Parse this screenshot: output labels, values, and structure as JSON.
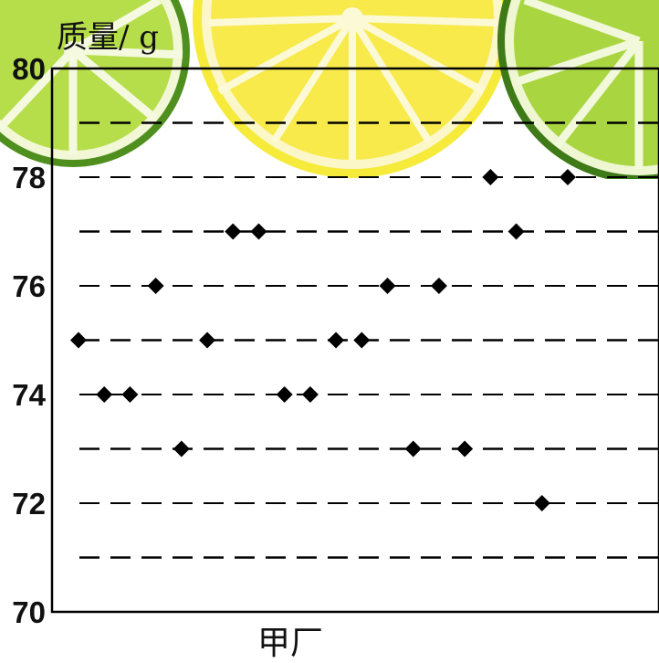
{
  "chart_data": {
    "type": "scatter",
    "ylabel": "质量/ g",
    "xlabel": "甲厂",
    "ylim": [
      70,
      80
    ],
    "yticks": [
      70,
      72,
      74,
      76,
      78,
      80
    ],
    "gridlines": [
      71,
      72,
      73,
      74,
      75,
      76,
      77,
      78,
      79
    ],
    "grid": true,
    "x": [
      1,
      2,
      3,
      4,
      5,
      6,
      7,
      8,
      9,
      10,
      11,
      12,
      13,
      14,
      15,
      16,
      17,
      18,
      19,
      20
    ],
    "y": [
      75,
      74,
      74,
      76,
      73,
      75,
      77,
      77,
      74,
      74,
      75,
      75,
      76,
      73,
      76,
      73,
      78,
      77,
      72,
      78
    ],
    "marker": "diamond",
    "marker_color": "#000000"
  }
}
